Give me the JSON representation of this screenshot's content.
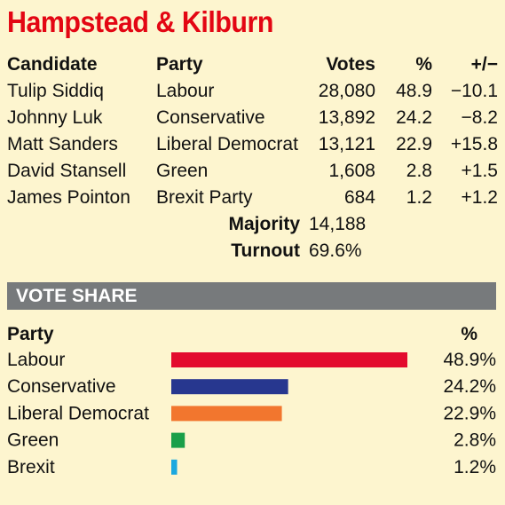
{
  "title": "Hampstead & Kilburn",
  "results": {
    "headers": {
      "candidate": "Candidate",
      "party": "Party",
      "votes": "Votes",
      "pct": "%",
      "change": "+/−"
    },
    "rows": [
      {
        "candidate": "Tulip Siddiq",
        "party": "Labour",
        "votes": "28,080",
        "pct": "48.9",
        "change": "−10.1"
      },
      {
        "candidate": "Johnny Luk",
        "party": "Conservative",
        "votes": "13,892",
        "pct": "24.2",
        "change": "−8.2"
      },
      {
        "candidate": "Matt Sanders",
        "party": "Liberal Democrat",
        "votes": "13,121",
        "pct": "22.9",
        "change": "+15.8"
      },
      {
        "candidate": "David Stansell",
        "party": "Green",
        "votes": "1,608",
        "pct": "2.8",
        "change": "+1.5"
      },
      {
        "candidate": "James Pointon",
        "party": "Brexit Party",
        "votes": "684",
        "pct": "1.2",
        "change": "+1.2"
      }
    ],
    "majority_label": "Majority",
    "majority_value": "14,188",
    "turnout_label": "Turnout",
    "turnout_value": "69.6%"
  },
  "vote_share_heading": "VOTE SHARE",
  "chart_data": {
    "type": "bar",
    "orientation": "horizontal",
    "category_header": "Party",
    "value_header": "%",
    "categories": [
      "Labour",
      "Conservative",
      "Liberal Democrat",
      "Green",
      "Brexit"
    ],
    "values": [
      48.9,
      24.2,
      22.9,
      2.8,
      1.2
    ],
    "value_labels": [
      "48.9%",
      "24.2%",
      "22.9%",
      "2.8%",
      "1.2%"
    ],
    "colors": [
      "#e30b2e",
      "#27378f",
      "#f2762e",
      "#1a9f49",
      "#1ba8df"
    ]
  }
}
